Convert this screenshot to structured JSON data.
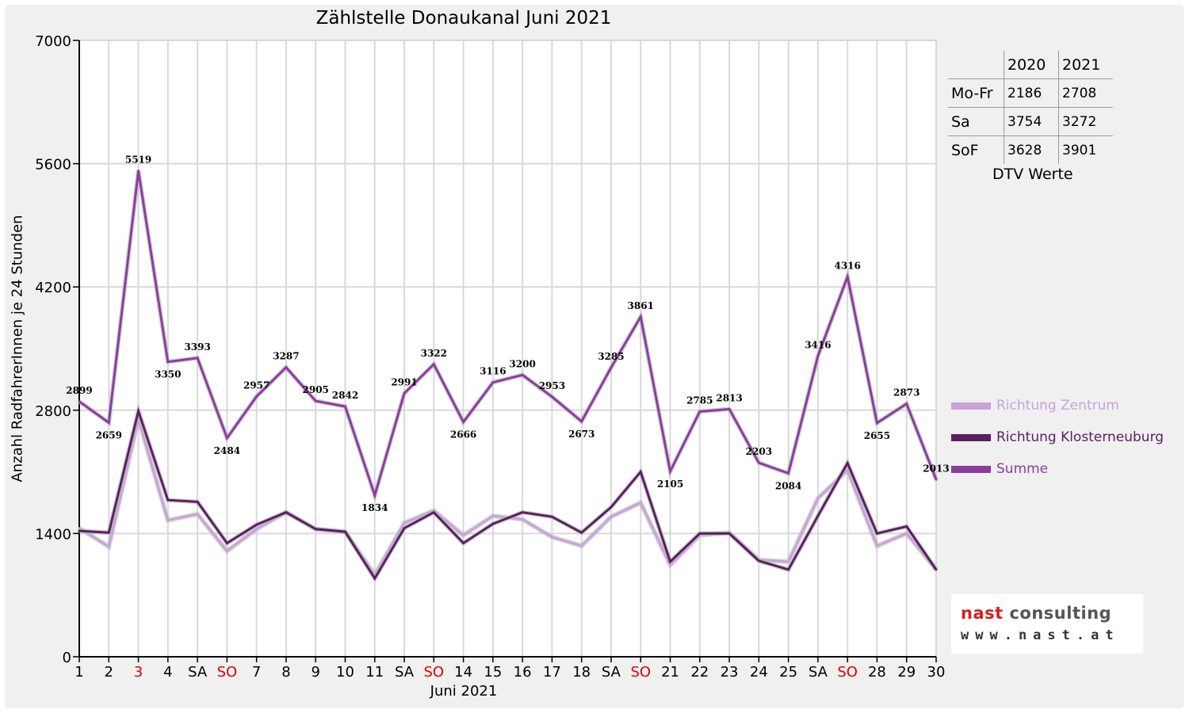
{
  "chart_data": {
    "type": "line",
    "title": "Zählstelle Donaukanal Juni 2021",
    "xlabel": "Juni 2021",
    "ylabel": "Anzahl RadfahrerInnen je 24 Stunden",
    "ylim": [
      0,
      7000
    ],
    "yticks": [
      "0",
      "1400",
      "2800",
      "4200",
      "5600",
      "7000"
    ],
    "categories": [
      "1",
      "2",
      "3",
      "4",
      "SA",
      "SO",
      "7",
      "8",
      "9",
      "10",
      "11",
      "SA",
      "SO",
      "14",
      "15",
      "16",
      "17",
      "18",
      "SA",
      "SO",
      "21",
      "22",
      "23",
      "24",
      "25",
      "SA",
      "SO",
      "28",
      "29",
      "30"
    ],
    "highlight_categories": [
      2,
      5,
      12,
      19,
      26
    ],
    "highlight_color": "#e00000",
    "grid": true,
    "series": [
      {
        "name": "Richtung Zentrum",
        "color": "#c9a3d9",
        "values": [
          1460,
          1250,
          2700,
          1550,
          1620,
          1200,
          1450,
          1640,
          1450,
          1420,
          930,
          1520,
          1660,
          1380,
          1600,
          1560,
          1360,
          1260,
          1590,
          1750,
          1040,
          1380,
          1410,
          1100,
          1080,
          1800,
          2120,
          1260,
          1400,
          990
        ]
      },
      {
        "name": "Richtung Klosterneuburg",
        "color": "#5a2060",
        "values": [
          1430,
          1410,
          2790,
          1780,
          1760,
          1290,
          1500,
          1640,
          1450,
          1420,
          890,
          1460,
          1640,
          1290,
          1510,
          1640,
          1590,
          1410,
          1700,
          2100,
          1080,
          1400,
          1400,
          1090,
          990,
          1600,
          2200,
          1400,
          1480,
          990
        ]
      },
      {
        "name": "Summe",
        "color": "#8b3d9e",
        "values": [
          2899,
          2659,
          5519,
          3350,
          3393,
          2484,
          2957,
          3287,
          2905,
          2842,
          1834,
          2991,
          3322,
          2666,
          3116,
          3200,
          2953,
          2673,
          3285,
          3861,
          2105,
          2785,
          2813,
          2203,
          2084,
          3416,
          4316,
          2655,
          2873,
          2013
        ]
      }
    ],
    "data_labels_series": 2
  },
  "dtv_table": {
    "headers": [
      "",
      "2020",
      "2021"
    ],
    "rows": [
      [
        "Mo-Fr",
        "2186",
        "2708"
      ],
      [
        "Sa",
        "3754",
        "3272"
      ],
      [
        "SoF",
        "3628",
        "3901"
      ]
    ],
    "caption": "DTV Werte"
  },
  "logo": {
    "brand_red": "nast",
    "brand_grey": " consulting",
    "url": "www.nast.at"
  }
}
